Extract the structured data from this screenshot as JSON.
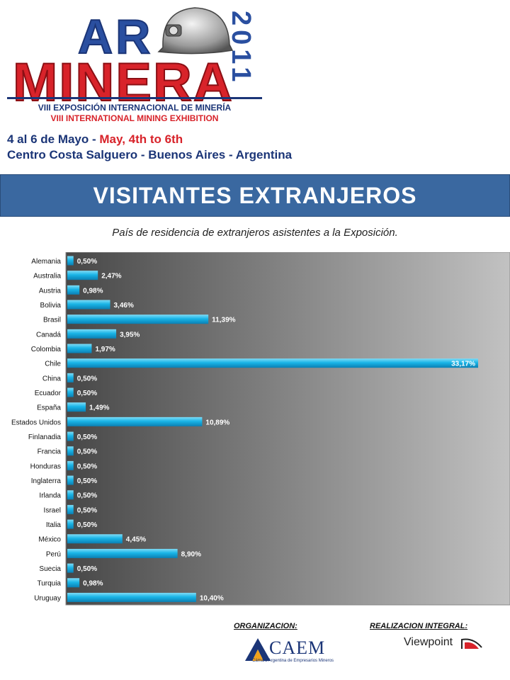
{
  "header": {
    "logo_ar": "AR",
    "logo_minera": "MINERA",
    "logo_year": "2011",
    "exhibition_es": "VIII EXPOSICIÓN INTERNACIONAL DE MINERÍA",
    "exhibition_en": "VIII INTERNATIONAL MINING EXHIBITION",
    "dates_es": "4 al 6 de Mayo - ",
    "dates_en": "May, 4th to 6th",
    "venue": "Centro Costa Salguero - Buenos Aires - Argentina"
  },
  "banner": {
    "title": "VISITANTES EXTRANJEROS"
  },
  "subtitle": "País de residencia de extranjeros asistentes a la Exposición.",
  "footer": {
    "organization_label": "ORGANIZACION:",
    "organization_name": "CAEM",
    "organization_tagline": "Cámara Argentina de Empresarios Mineros",
    "production_label": "REALIZACION INTEGRAL:",
    "production_name": "Viewpoint"
  },
  "colors": {
    "banner": "#3a68a0",
    "bar": "#19b4e6",
    "plot_bg_start": "#4a4a4a",
    "plot_bg_end": "#c0c0c0",
    "brand_blue": "#1b3577",
    "brand_red": "#d8232a"
  },
  "chart_data": {
    "type": "bar",
    "orientation": "horizontal",
    "categories": [
      "Alemania",
      "Australia",
      "Austria",
      "Bolivia",
      "Brasil",
      "Canadá",
      "Colombia",
      "Chile",
      "China",
      "Ecuador",
      "España",
      "Estados Unidos",
      "Finlanadia",
      "Francia",
      "Honduras",
      "Inglaterra",
      "Irlanda",
      "Israel",
      "Italia",
      "México",
      "Perú",
      "Suecia",
      "Turquia",
      "Uruguay"
    ],
    "values": [
      0.5,
      2.47,
      0.98,
      3.46,
      11.39,
      3.95,
      1.97,
      33.17,
      0.5,
      0.5,
      1.49,
      10.89,
      0.5,
      0.5,
      0.5,
      0.5,
      0.5,
      0.5,
      0.5,
      4.45,
      8.9,
      0.5,
      0.98,
      10.4
    ],
    "value_labels": [
      "0,50%",
      "2,47%",
      "0,98%",
      "3,46%",
      "11,39%",
      "3,95%",
      "1,97%",
      "33,17%",
      "0,50%",
      "0,50%",
      "1,49%",
      "10,89%",
      "0,50%",
      "0,50%",
      "0,50%",
      "0,50%",
      "0,50%",
      "0,50%",
      "0,50%",
      "4,45%",
      "8,90%",
      "0,50%",
      "0,98%",
      "10,40%"
    ],
    "xlim": [
      0,
      35
    ],
    "grid": false,
    "legend": "none"
  }
}
